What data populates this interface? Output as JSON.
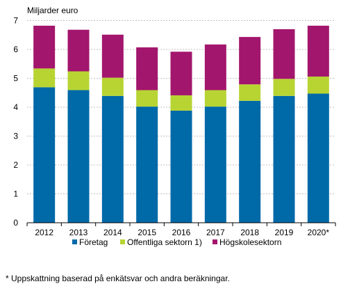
{
  "chart_data": {
    "type": "bar",
    "stacked": true,
    "unit_label": "Miljarder euro",
    "categories": [
      "2012",
      "2013",
      "2014",
      "2015",
      "2016",
      "2017",
      "2018",
      "2019",
      "2020*"
    ],
    "series": [
      {
        "name": "Företag",
        "color": "#0069a8",
        "values": [
          4.69,
          4.59,
          4.39,
          4.02,
          3.88,
          4.02,
          4.22,
          4.39,
          4.47
        ]
      },
      {
        "name": "Offentliga sektorn 1)",
        "color": "#b7d433",
        "values": [
          0.65,
          0.65,
          0.63,
          0.57,
          0.53,
          0.57,
          0.57,
          0.59,
          0.59
        ]
      },
      {
        "name": "Högskolesektorn",
        "color": "#a3166d",
        "values": [
          1.48,
          1.44,
          1.49,
          1.48,
          1.51,
          1.58,
          1.64,
          1.72,
          1.76
        ]
      }
    ],
    "yticks": [
      0,
      1,
      2,
      3,
      4,
      5,
      6,
      7
    ],
    "ylim": [
      0,
      7.3
    ],
    "grid": true,
    "legend_position": "bottom",
    "footnote": "* Uppskattning baserad på enkätsvar och andra beräkningar."
  }
}
